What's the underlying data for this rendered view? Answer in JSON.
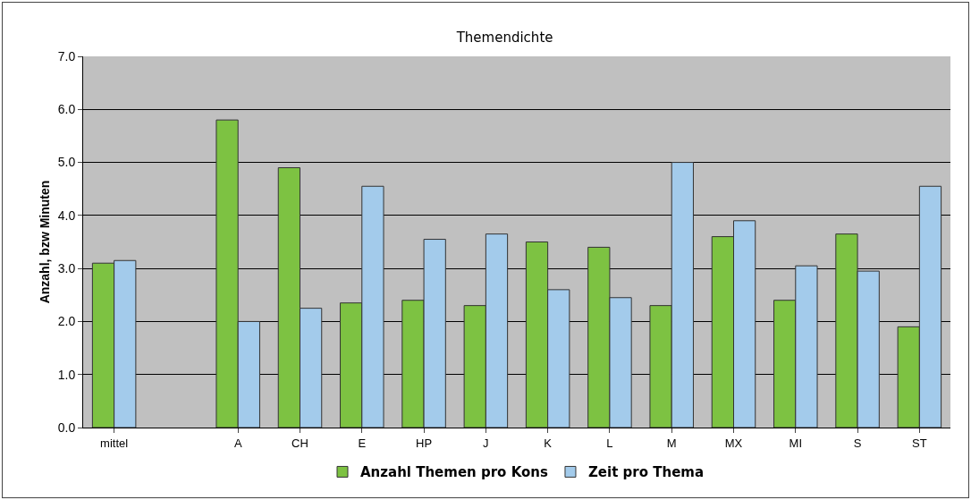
{
  "chart_data": {
    "type": "bar",
    "title": "Themendichte",
    "ylabel": "Anzahl, bzw Minuten",
    "categories": [
      "mittel",
      null,
      "A",
      "CH",
      "E",
      "HP",
      "J",
      "K",
      "L",
      "M",
      "MX",
      "MI",
      "S",
      "ST"
    ],
    "series": [
      {
        "name": "Anzahl Themen pro Kons",
        "color": "#7dc242",
        "values": [
          3.1,
          null,
          5.8,
          4.9,
          2.35,
          2.4,
          2.3,
          3.5,
          3.4,
          2.3,
          3.6,
          2.4,
          3.65,
          1.9
        ]
      },
      {
        "name": "Zeit pro Thema",
        "color": "#a3cbeb",
        "values": [
          3.15,
          null,
          2.0,
          2.25,
          4.55,
          3.55,
          3.65,
          2.6,
          2.45,
          5.0,
          3.9,
          3.05,
          2.95,
          4.55
        ]
      }
    ],
    "ylim": [
      0,
      7
    ],
    "yticks": [
      {
        "value": 0,
        "label": "0.0"
      },
      {
        "value": 1,
        "label": "1.0"
      },
      {
        "value": 2,
        "label": "2.0"
      },
      {
        "value": 3,
        "label": "3.0"
      },
      {
        "value": 4,
        "label": "4.0"
      },
      {
        "value": 5,
        "label": "5.0"
      },
      {
        "value": 6,
        "label": "6.0"
      },
      {
        "value": 7,
        "label": "7.0"
      }
    ],
    "grid": "y",
    "legend": "bottom"
  }
}
